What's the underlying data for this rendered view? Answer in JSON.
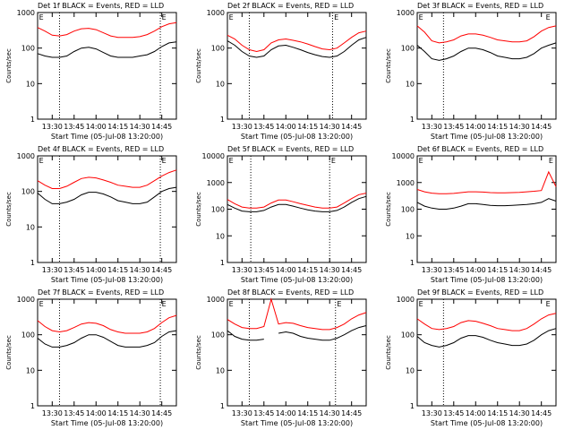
{
  "chart_data": [
    {
      "type": "line",
      "title": "Det 1f BLACK = Events, RED = LLD",
      "ylabel": "Counts/sec",
      "xlabel": "Start Time (05-Jul-08 13:20:00)",
      "yscale": "log",
      "x": [
        "13:20",
        "13:25",
        "13:30",
        "13:35",
        "13:40",
        "13:45",
        "13:50",
        "13:55",
        "14:00",
        "14:05",
        "14:10",
        "14:15",
        "14:20",
        "14:25",
        "14:30",
        "14:35",
        "14:40",
        "14:45",
        "14:50",
        "14:55"
      ],
      "xlim": [
        "13:20",
        "14:55"
      ],
      "xticks": [
        "13:30",
        "13:45",
        "14:00",
        "14:15",
        "14:30",
        "14:45"
      ],
      "ylim": [
        1,
        1000
      ],
      "yticks": [
        1,
        10,
        100,
        1000
      ],
      "vlines": [
        "13:35",
        "14:44"
      ],
      "event_labels": [
        {
          "x": "13:21",
          "label": "E"
        },
        {
          "x": "14:45",
          "label": "E"
        }
      ],
      "series": [
        {
          "name": "Events",
          "color": "#000000",
          "values": [
            70,
            60,
            55,
            55,
            60,
            80,
            100,
            105,
            95,
            75,
            60,
            55,
            55,
            55,
            60,
            65,
            80,
            110,
            140,
            150
          ]
        },
        {
          "name": "LLD",
          "color": "#ff0000",
          "values": [
            380,
            300,
            230,
            220,
            240,
            300,
            350,
            360,
            330,
            270,
            220,
            200,
            200,
            200,
            210,
            240,
            300,
            400,
            480,
            520
          ]
        }
      ]
    },
    {
      "type": "line",
      "title": "Det 2f BLACK = Events, RED = LLD",
      "ylabel": "Counts/sec",
      "xlabel": "Start Time (05-Jul-08 13:20:00)",
      "yscale": "log",
      "x": [
        "13:20",
        "13:25",
        "13:30",
        "13:35",
        "13:40",
        "13:45",
        "13:50",
        "13:55",
        "14:00",
        "14:05",
        "14:10",
        "14:15",
        "14:20",
        "14:25",
        "14:30",
        "14:35",
        "14:40",
        "14:45",
        "14:50",
        "14:55"
      ],
      "xlim": [
        "13:20",
        "14:55"
      ],
      "xticks": [
        "13:30",
        "13:45",
        "14:00",
        "14:15",
        "14:30",
        "14:45"
      ],
      "ylim": [
        1,
        1000
      ],
      "yticks": [
        1,
        10,
        100,
        1000
      ],
      "vlines": [
        "13:35",
        "14:32"
      ],
      "event_labels": [
        {
          "x": "13:21",
          "label": "E"
        },
        {
          "x": "14:33",
          "label": "E"
        }
      ],
      "series": [
        {
          "name": "Events",
          "color": "#000000",
          "values": [
            160,
            120,
            80,
            60,
            55,
            60,
            90,
            115,
            120,
            105,
            90,
            75,
            65,
            58,
            55,
            60,
            80,
            120,
            170,
            200
          ]
        },
        {
          "name": "LLD",
          "color": "#ff0000",
          "values": [
            230,
            180,
            120,
            90,
            80,
            90,
            140,
            170,
            180,
            165,
            150,
            130,
            110,
            95,
            90,
            100,
            140,
            200,
            270,
            300
          ]
        }
      ]
    },
    {
      "type": "line",
      "title": "Det 3f BLACK = Events, RED = LLD",
      "ylabel": "Counts/sec",
      "xlabel": "Start Time (05-Jul-08 13:20:00)",
      "yscale": "log",
      "x": [
        "13:20",
        "13:25",
        "13:30",
        "13:35",
        "13:40",
        "13:45",
        "13:50",
        "13:55",
        "14:00",
        "14:05",
        "14:10",
        "14:15",
        "14:20",
        "14:25",
        "14:30",
        "14:35",
        "14:40",
        "14:45",
        "14:50",
        "14:55"
      ],
      "xlim": [
        "13:20",
        "14:55"
      ],
      "xticks": [
        "13:30",
        "13:45",
        "14:00",
        "14:15",
        "14:30",
        "14:45"
      ],
      "ylim": [
        1,
        1000
      ],
      "yticks": [
        1,
        10,
        100,
        1000
      ],
      "vlines": [
        "13:38"
      ],
      "event_labels": [
        {
          "x": "13:21",
          "label": "E"
        },
        {
          "x": "14:48",
          "label": "E"
        }
      ],
      "series": [
        {
          "name": "Events",
          "color": "#000000",
          "values": [
            120,
            80,
            50,
            45,
            50,
            60,
            80,
            100,
            100,
            90,
            75,
            60,
            55,
            50,
            50,
            55,
            70,
            100,
            120,
            140
          ]
        },
        {
          "name": "LLD",
          "color": "#ff0000",
          "values": [
            420,
            280,
            160,
            140,
            150,
            170,
            220,
            250,
            250,
            230,
            200,
            170,
            160,
            150,
            150,
            160,
            210,
            300,
            380,
            420
          ]
        }
      ]
    },
    {
      "type": "line",
      "title": "Det 4f BLACK = Events, RED = LLD",
      "ylabel": "Counts/sec",
      "xlabel": "Start Time (05-Jul-08 13:20:00)",
      "yscale": "log",
      "x": [
        "13:20",
        "13:25",
        "13:30",
        "13:35",
        "13:40",
        "13:45",
        "13:50",
        "13:55",
        "14:00",
        "14:05",
        "14:10",
        "14:15",
        "14:20",
        "14:25",
        "14:30",
        "14:35",
        "14:40",
        "14:45",
        "14:50",
        "14:55"
      ],
      "xlim": [
        "13:20",
        "14:55"
      ],
      "xticks": [
        "13:30",
        "13:45",
        "14:00",
        "14:15",
        "14:30",
        "14:45"
      ],
      "ylim": [
        1,
        1000
      ],
      "yticks": [
        1,
        10,
        100,
        1000
      ],
      "vlines": [
        "13:35",
        "14:44"
      ],
      "event_labels": [
        {
          "x": "13:21",
          "label": "E"
        },
        {
          "x": "14:45",
          "label": "E"
        }
      ],
      "series": [
        {
          "name": "Events",
          "color": "#000000",
          "values": [
            90,
            60,
            45,
            45,
            50,
            60,
            80,
            95,
            95,
            85,
            70,
            55,
            50,
            45,
            45,
            50,
            70,
            100,
            120,
            130
          ]
        },
        {
          "name": "LLD",
          "color": "#ff0000",
          "values": [
            200,
            150,
            120,
            120,
            140,
            180,
            230,
            250,
            240,
            210,
            180,
            150,
            140,
            130,
            130,
            150,
            200,
            270,
            340,
            400
          ]
        }
      ]
    },
    {
      "type": "line",
      "title": "Det 5f BLACK = Events, RED = LLD",
      "ylabel": "Counts/sec",
      "xlabel": "Start Time (05-Jul-08 13:20:00)",
      "yscale": "log",
      "x": [
        "13:20",
        "13:25",
        "13:30",
        "13:35",
        "13:40",
        "13:45",
        "13:50",
        "13:55",
        "14:00",
        "14:05",
        "14:10",
        "14:15",
        "14:20",
        "14:25",
        "14:30",
        "14:35",
        "14:40",
        "14:45",
        "14:50",
        "14:55"
      ],
      "xlim": [
        "13:20",
        "14:55"
      ],
      "xticks": [
        "13:30",
        "13:45",
        "14:00",
        "14:15",
        "14:30",
        "14:45"
      ],
      "ylim": [
        1,
        10000
      ],
      "yticks": [
        1,
        10,
        100,
        1000,
        10000
      ],
      "vlines": [
        "13:36",
        "14:30"
      ],
      "event_labels": [
        {
          "x": "13:21",
          "label": "E"
        },
        {
          "x": "14:31",
          "label": "E"
        }
      ],
      "series": [
        {
          "name": "Events",
          "color": "#000000",
          "values": [
            150,
            110,
            85,
            80,
            80,
            90,
            120,
            150,
            150,
            130,
            110,
            95,
            85,
            80,
            80,
            90,
            120,
            180,
            250,
            300
          ]
        },
        {
          "name": "LLD",
          "color": "#ff0000",
          "values": [
            230,
            160,
            120,
            110,
            110,
            120,
            170,
            220,
            220,
            190,
            160,
            140,
            120,
            110,
            110,
            120,
            170,
            250,
            350,
            400
          ]
        }
      ]
    },
    {
      "type": "line",
      "title": "Det 6f BLACK = Events, RED = LLD",
      "ylabel": "Counts/sec",
      "xlabel": "Start Time (05-Jul-08 13:20:00)",
      "yscale": "log",
      "x": [
        "13:20",
        "13:25",
        "13:30",
        "13:35",
        "13:40",
        "13:45",
        "13:50",
        "13:55",
        "14:00",
        "14:05",
        "14:10",
        "14:15",
        "14:20",
        "14:25",
        "14:30",
        "14:35",
        "14:40",
        "14:45",
        "14:50",
        "14:55"
      ],
      "xlim": [
        "13:20",
        "14:55"
      ],
      "xticks": [
        "13:30",
        "13:45",
        "14:00",
        "14:15",
        "14:30",
        "14:45"
      ],
      "ylim": [
        1,
        10000
      ],
      "yticks": [
        1,
        10,
        100,
        1000,
        10000
      ],
      "vlines": [],
      "event_labels": [
        {
          "x": "13:21",
          "label": "E"
        },
        {
          "x": "14:50",
          "label": "E"
        }
      ],
      "series": [
        {
          "name": "Events",
          "color": "#000000",
          "values": [
            180,
            130,
            110,
            100,
            100,
            110,
            130,
            160,
            160,
            150,
            140,
            135,
            135,
            140,
            145,
            150,
            160,
            180,
            250,
            200
          ]
        },
        {
          "name": "LLD",
          "color": "#ff0000",
          "values": [
            550,
            450,
            400,
            380,
            380,
            390,
            420,
            450,
            450,
            440,
            420,
            410,
            410,
            420,
            430,
            450,
            470,
            500,
            2500,
            700
          ]
        }
      ]
    },
    {
      "type": "line",
      "title": "Det 7f BLACK = Events, RED = LLD",
      "ylabel": "Counts/sec",
      "xlabel": "Start Time (05-Jul-08 13:20:00)",
      "yscale": "log",
      "x": [
        "13:20",
        "13:25",
        "13:30",
        "13:35",
        "13:40",
        "13:45",
        "13:50",
        "13:55",
        "14:00",
        "14:05",
        "14:10",
        "14:15",
        "14:20",
        "14:25",
        "14:30",
        "14:35",
        "14:40",
        "14:45",
        "14:50",
        "14:55"
      ],
      "xlim": [
        "13:20",
        "14:55"
      ],
      "xticks": [
        "13:30",
        "13:45",
        "14:00",
        "14:15",
        "14:30",
        "14:45"
      ],
      "ylim": [
        1,
        1000
      ],
      "yticks": [
        1,
        10,
        100,
        1000
      ],
      "vlines": [
        "13:35",
        "14:44"
      ],
      "event_labels": [
        {
          "x": "13:21",
          "label": "E"
        },
        {
          "x": "14:45",
          "label": "E"
        }
      ],
      "series": [
        {
          "name": "Events",
          "color": "#000000",
          "values": [
            80,
            55,
            45,
            45,
            50,
            60,
            80,
            100,
            100,
            85,
            65,
            50,
            45,
            45,
            45,
            50,
            60,
            90,
            120,
            130
          ]
        },
        {
          "name": "LLD",
          "color": "#ff0000",
          "values": [
            250,
            170,
            130,
            120,
            130,
            160,
            200,
            220,
            210,
            180,
            140,
            120,
            110,
            110,
            110,
            120,
            150,
            220,
            300,
            350
          ]
        }
      ]
    },
    {
      "type": "line",
      "title": "Det 8f BLACK = Events, RED = LLD",
      "ylabel": "Counts/sec",
      "xlabel": "Start Time (05-Jul-08 13:20:00)",
      "yscale": "log",
      "x": [
        "13:20",
        "13:25",
        "13:30",
        "13:35",
        "13:40",
        "13:45",
        "13:50",
        "13:55",
        "14:00",
        "14:05",
        "14:10",
        "14:15",
        "14:20",
        "14:25",
        "14:30",
        "14:35",
        "14:40",
        "14:45",
        "14:50",
        "14:55"
      ],
      "xlim": [
        "13:20",
        "14:55"
      ],
      "xticks": [
        "13:30",
        "13:45",
        "14:00",
        "14:15",
        "14:30",
        "14:45"
      ],
      "ylim": [
        1,
        1000
      ],
      "yticks": [
        1,
        10,
        100,
        1000
      ],
      "vlines": [
        "13:35",
        "14:34"
      ],
      "event_labels": [
        {
          "x": "13:21",
          "label": "E"
        },
        {
          "x": "14:35",
          "label": "E"
        }
      ],
      "series": [
        {
          "name": "Events",
          "color": "#000000",
          "values": [
            130,
            90,
            75,
            70,
            70,
            75,
            null,
            110,
            120,
            110,
            90,
            80,
            75,
            70,
            70,
            80,
            100,
            130,
            160,
            180
          ]
        },
        {
          "name": "LLD",
          "color": "#ff0000",
          "values": [
            270,
            200,
            160,
            150,
            150,
            170,
            1000,
            200,
            220,
            210,
            180,
            160,
            150,
            140,
            140,
            160,
            200,
            280,
            360,
            420
          ]
        }
      ]
    },
    {
      "type": "line",
      "title": "Det 9f BLACK = Events, RED = LLD",
      "ylabel": "Counts/sec",
      "xlabel": "Start Time (05-Jul-08 13:20:00)",
      "yscale": "log",
      "x": [
        "13:20",
        "13:25",
        "13:30",
        "13:35",
        "13:40",
        "13:45",
        "13:50",
        "13:55",
        "14:00",
        "14:05",
        "14:10",
        "14:15",
        "14:20",
        "14:25",
        "14:30",
        "14:35",
        "14:40",
        "14:45",
        "14:50",
        "14:55"
      ],
      "xlim": [
        "13:20",
        "14:55"
      ],
      "xticks": [
        "13:30",
        "13:45",
        "14:00",
        "14:15",
        "14:30",
        "14:45"
      ],
      "ylim": [
        1,
        1000
      ],
      "yticks": [
        1,
        10,
        100,
        1000
      ],
      "vlines": [
        "13:38"
      ],
      "event_labels": [
        {
          "x": "13:21",
          "label": "E"
        },
        {
          "x": "14:48",
          "label": "E"
        }
      ],
      "series": [
        {
          "name": "Events",
          "color": "#000000",
          "values": [
            90,
            60,
            50,
            45,
            50,
            60,
            80,
            95,
            95,
            85,
            70,
            60,
            55,
            50,
            50,
            55,
            70,
            100,
            130,
            150
          ]
        },
        {
          "name": "LLD",
          "color": "#ff0000",
          "values": [
            280,
            200,
            150,
            140,
            150,
            170,
            220,
            250,
            240,
            210,
            180,
            150,
            140,
            130,
            130,
            150,
            200,
            280,
            360,
            400
          ]
        }
      ]
    }
  ]
}
